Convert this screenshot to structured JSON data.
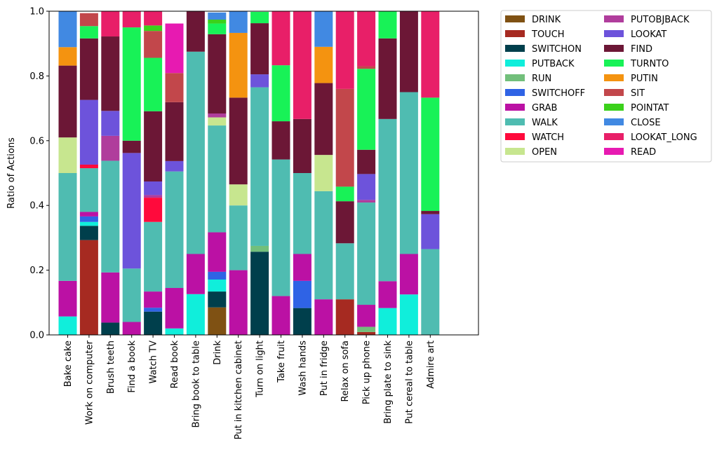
{
  "chart_data": {
    "type": "bar",
    "stacked": true,
    "ylabel": "Ratio of Actions",
    "ylim": [
      0,
      1
    ],
    "yticks": [
      "0.0",
      "0.2",
      "0.4",
      "0.6",
      "0.8",
      "1.0"
    ],
    "categories": [
      "Bake cake",
      "Work on computer",
      "Brush teeth",
      "Find a book",
      "Watch TV",
      "Read book",
      "Bring book to table",
      "Drink",
      "Put in kitchen cabinet",
      "Turn on light",
      "Take fruit",
      "Wash hands",
      "Put in fridge",
      "Relax on sofa",
      "Pick up phone",
      "Bring plate to sink",
      "Put cereal to table",
      "Admire art"
    ],
    "legend_position": "outside-right",
    "series": [
      {
        "name": "DRINK",
        "color": "#7f5113",
        "values": [
          0,
          0,
          0,
          0,
          0,
          0,
          0,
          0.085,
          0,
          0,
          0,
          0,
          0,
          0,
          0,
          0,
          0,
          0
        ]
      },
      {
        "name": "TOUCH",
        "color": "#a62a21",
        "values": [
          0,
          0.293,
          0,
          0,
          0,
          0,
          0,
          0,
          0,
          0,
          0,
          0,
          0,
          0.11,
          0.009,
          0,
          0,
          0
        ]
      },
      {
        "name": "SWITCHON",
        "color": "#003f4c",
        "values": [
          0,
          0.044,
          0.038,
          0,
          0.072,
          0,
          0,
          0.049,
          0,
          0.257,
          0,
          0.083,
          0,
          0,
          0,
          0,
          0,
          0
        ]
      },
      {
        "name": "PUTBACK",
        "color": "#10eedb",
        "values": [
          0.057,
          0.012,
          0,
          0,
          0,
          0.02,
          0.126,
          0.037,
          0,
          0,
          0,
          0,
          0,
          0,
          0,
          0.083,
          0.125,
          0
        ]
      },
      {
        "name": "RUN",
        "color": "#72bf7b",
        "values": [
          0,
          0,
          0,
          0,
          0,
          0,
          0,
          0,
          0,
          0.018,
          0,
          0,
          0,
          0,
          0.016,
          0,
          0,
          0
        ]
      },
      {
        "name": "SWITCHOFF",
        "color": "#2f63e5",
        "values": [
          0,
          0.017,
          0,
          0,
          0.012,
          0,
          0,
          0.024,
          0,
          0,
          0,
          0.084,
          0,
          0,
          0,
          0,
          0,
          0
        ]
      },
      {
        "name": "GRAB",
        "color": "#bb11a4",
        "values": [
          0.11,
          0.014,
          0.155,
          0.04,
          0.05,
          0.125,
          0.124,
          0.122,
          0.2,
          0,
          0.12,
          0.083,
          0.11,
          0,
          0.068,
          0.083,
          0.125,
          0
        ]
      },
      {
        "name": "WALK",
        "color": "#4fbcb1",
        "values": [
          0.333,
          0.135,
          0.345,
          0.165,
          0.215,
          0.36,
          0.625,
          0.33,
          0.2,
          0.49,
          0.422,
          0.25,
          0.334,
          0.173,
          0.316,
          0.501,
          0.5,
          0.265
        ]
      },
      {
        "name": "WATCH",
        "color": "#ff0a3c",
        "values": [
          0,
          0.011,
          0,
          0,
          0.075,
          0,
          0,
          0,
          0,
          0,
          0,
          0,
          0,
          0,
          0,
          0,
          0,
          0
        ]
      },
      {
        "name": "OPEN",
        "color": "#c7e68f",
        "values": [
          0.11,
          0,
          0,
          0,
          0,
          0,
          0,
          0.025,
          0.065,
          0,
          0,
          0,
          0.112,
          0,
          0,
          0,
          0,
          0
        ]
      },
      {
        "name": "PUTOBJBACK",
        "color": "#b03d9c",
        "values": [
          0,
          0,
          0.077,
          0,
          0.008,
          0,
          0,
          0.012,
          0,
          0,
          0,
          0,
          0,
          0,
          0.008,
          0,
          0,
          0
        ]
      },
      {
        "name": "LOOKAT",
        "color": "#6d53db",
        "values": [
          0,
          0.2,
          0.077,
          0.357,
          0.042,
          0.032,
          0,
          0,
          0,
          0.04,
          0,
          0,
          0,
          0,
          0.08,
          0,
          0,
          0.108
        ]
      },
      {
        "name": "FIND",
        "color": "#6c1736",
        "values": [
          0.222,
          0.19,
          0.23,
          0.038,
          0.217,
          0.182,
          0.125,
          0.245,
          0.268,
          0.158,
          0.118,
          0.167,
          0.222,
          0.13,
          0.075,
          0.249,
          0.25,
          0.01
        ]
      },
      {
        "name": "TURNTO",
        "color": "#18f257",
        "values": [
          0,
          0.038,
          0,
          0.35,
          0.165,
          0,
          0,
          0.033,
          0,
          0.035,
          0.173,
          0,
          0,
          0.045,
          0.25,
          0.084,
          0,
          0.35
        ]
      },
      {
        "name": "PUTIN",
        "color": "#f49310",
        "values": [
          0.057,
          0,
          0,
          0,
          0,
          0,
          0,
          0,
          0.2,
          0,
          0,
          0,
          0.112,
          0,
          0,
          0,
          0,
          0
        ]
      },
      {
        "name": "SIT",
        "color": "#c2474b",
        "values": [
          0,
          0.04,
          0,
          0,
          0.083,
          0.09,
          0,
          0,
          0,
          0,
          0,
          0,
          0,
          0.302,
          0.008,
          0,
          0,
          0
        ]
      },
      {
        "name": "POINTAT",
        "color": "#3bd11b",
        "values": [
          0,
          0,
          0,
          0,
          0.017,
          0,
          0,
          0.012,
          0,
          0,
          0,
          0,
          0,
          0,
          0,
          0,
          0,
          0
        ]
      },
      {
        "name": "CLOSE",
        "color": "#4189e2",
        "values": [
          0.111,
          0,
          0,
          0,
          0,
          0,
          0,
          0.022,
          0.066,
          0,
          0,
          0,
          0.11,
          0,
          0,
          0,
          0,
          0
        ]
      },
      {
        "name": "LOOKAT_LONG",
        "color": "#e81f68",
        "values": [
          0,
          0,
          0.078,
          0.05,
          0.044,
          0,
          0,
          0,
          0,
          0,
          0.167,
          0.333,
          0,
          0.24,
          0.17,
          0,
          0,
          0.267
        ]
      },
      {
        "name": "READ",
        "color": "#e71ab1",
        "values": [
          0,
          0,
          0,
          0,
          0,
          0.153,
          0,
          0,
          0,
          0,
          0,
          0,
          0,
          0,
          0,
          0,
          0,
          0
        ]
      }
    ]
  }
}
